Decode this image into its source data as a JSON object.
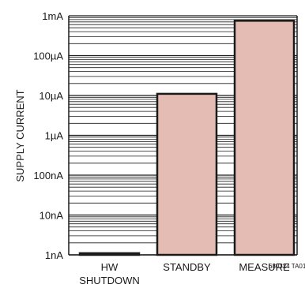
{
  "chart_data": {
    "type": "bar",
    "ylabel": "SUPPLY CURRENT",
    "yscale": "log",
    "ylim": [
      1e-09,
      0.001
    ],
    "yticks": [
      {
        "value": 0.001,
        "label": "1mA"
      },
      {
        "value": 0.0001,
        "label": "100µA"
      },
      {
        "value": 1e-05,
        "label": "10µA"
      },
      {
        "value": 1e-06,
        "label": "1µA"
      },
      {
        "value": 1e-07,
        "label": "100nA"
      },
      {
        "value": 1e-08,
        "label": "10nA"
      },
      {
        "value": 1e-09,
        "label": "1nA"
      }
    ],
    "grid": true,
    "categories": [
      {
        "id": "hw_shutdown",
        "lines": [
          "HW",
          "SHUTDOWN"
        ]
      },
      {
        "id": "standby",
        "lines": [
          "STANDBY"
        ]
      },
      {
        "id": "measure",
        "lines": [
          "MEASURE"
        ]
      }
    ],
    "values": [
      1.1e-09,
      1.1e-05,
      0.00075
    ],
    "bar_fill": "#e4bcb4",
    "bar_stroke": "#1a1a1a",
    "grid_color": "#1a1a1a"
  },
  "figure_id": "680324 TA01"
}
